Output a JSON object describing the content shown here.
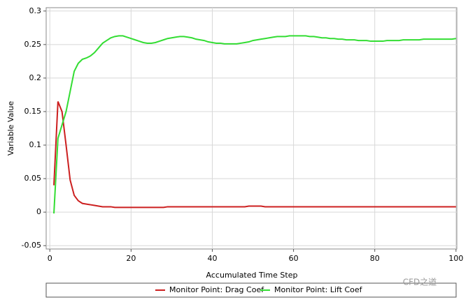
{
  "chart_data": {
    "type": "line",
    "xlabel": "Accumulated Time Step",
    "ylabel": "Variable Value",
    "watermark": "CFD之道",
    "x": [
      1,
      2,
      3,
      4,
      5,
      6,
      7,
      8,
      9,
      10,
      11,
      12,
      13,
      14,
      15,
      16,
      17,
      18,
      19,
      20,
      21,
      22,
      23,
      24,
      25,
      26,
      27,
      28,
      29,
      30,
      31,
      32,
      33,
      34,
      35,
      36,
      37,
      38,
      39,
      40,
      41,
      42,
      43,
      44,
      45,
      46,
      47,
      48,
      49,
      50,
      51,
      52,
      53,
      54,
      55,
      56,
      57,
      58,
      59,
      60,
      61,
      62,
      63,
      64,
      65,
      66,
      67,
      68,
      69,
      70,
      71,
      72,
      73,
      74,
      75,
      76,
      77,
      78,
      79,
      80,
      81,
      82,
      83,
      84,
      85,
      86,
      87,
      88,
      89,
      90,
      91,
      92,
      93,
      94,
      95,
      96,
      97,
      98,
      99,
      100
    ],
    "series": [
      {
        "name": "Monitor Point: Drag Coef",
        "color": "#cc1f1f",
        "values": [
          0.04,
          0.165,
          0.15,
          0.1,
          0.048,
          0.025,
          0.017,
          0.013,
          0.012,
          0.011,
          0.01,
          0.009,
          0.008,
          0.008,
          0.008,
          0.007,
          0.007,
          0.007,
          0.007,
          0.007,
          0.007,
          0.007,
          0.007,
          0.007,
          0.007,
          0.007,
          0.007,
          0.007,
          0.008,
          0.008,
          0.008,
          0.008,
          0.008,
          0.008,
          0.008,
          0.008,
          0.008,
          0.008,
          0.008,
          0.008,
          0.008,
          0.008,
          0.008,
          0.008,
          0.008,
          0.008,
          0.008,
          0.008,
          0.009,
          0.009,
          0.009,
          0.009,
          0.008,
          0.008,
          0.008,
          0.008,
          0.008,
          0.008,
          0.008,
          0.008,
          0.008,
          0.008,
          0.008,
          0.008,
          0.008,
          0.008,
          0.008,
          0.008,
          0.008,
          0.008,
          0.008,
          0.008,
          0.008,
          0.008,
          0.008,
          0.008,
          0.008,
          0.008,
          0.008,
          0.008,
          0.008,
          0.008,
          0.008,
          0.008,
          0.008,
          0.008,
          0.008,
          0.008,
          0.008,
          0.008,
          0.008,
          0.008,
          0.008,
          0.008,
          0.008,
          0.008,
          0.008,
          0.008,
          0.008,
          0.008
        ]
      },
      {
        "name": "Monitor Point: Lift Coef",
        "color": "#33dd33",
        "values": [
          -0.002,
          0.11,
          0.13,
          0.15,
          0.18,
          0.21,
          0.222,
          0.228,
          0.23,
          0.233,
          0.238,
          0.245,
          0.252,
          0.256,
          0.26,
          0.262,
          0.263,
          0.263,
          0.261,
          0.259,
          0.257,
          0.255,
          0.253,
          0.252,
          0.252,
          0.253,
          0.255,
          0.257,
          0.259,
          0.26,
          0.261,
          0.262,
          0.262,
          0.261,
          0.26,
          0.258,
          0.257,
          0.256,
          0.254,
          0.253,
          0.252,
          0.252,
          0.251,
          0.251,
          0.251,
          0.251,
          0.252,
          0.253,
          0.254,
          0.256,
          0.257,
          0.258,
          0.259,
          0.26,
          0.261,
          0.262,
          0.262,
          0.262,
          0.263,
          0.263,
          0.263,
          0.263,
          0.263,
          0.262,
          0.262,
          0.261,
          0.26,
          0.26,
          0.259,
          0.259,
          0.258,
          0.258,
          0.257,
          0.257,
          0.257,
          0.256,
          0.256,
          0.256,
          0.255,
          0.255,
          0.255,
          0.255,
          0.256,
          0.256,
          0.256,
          0.256,
          0.257,
          0.257,
          0.257,
          0.257,
          0.257,
          0.258,
          0.258,
          0.258,
          0.258,
          0.258,
          0.258,
          0.258,
          0.258,
          0.259
        ]
      }
    ],
    "xlim": [
      -0.9,
      100.2
    ],
    "xticks": [
      0,
      20,
      40,
      60,
      80,
      100
    ],
    "ylim": [
      -0.055,
      0.305
    ],
    "yticks": [
      -0.05,
      0,
      0.05,
      0.1,
      0.15,
      0.2,
      0.25,
      0.3
    ],
    "grid": true,
    "legend": "bottom"
  }
}
